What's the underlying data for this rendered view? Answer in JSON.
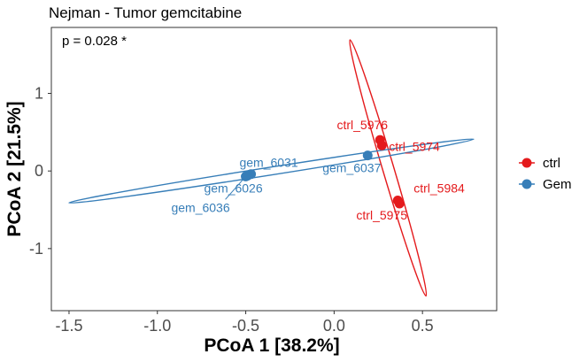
{
  "chart_data": {
    "type": "scatter",
    "title": "Nejman - Tumor gemcitabine",
    "annotation": "p = 0.028 *",
    "xlabel": "PCoA 1 [38.2%]",
    "ylabel": "PCoA 2 [21.5%]",
    "xlim": [
      -1.6,
      0.92
    ],
    "ylim": [
      -1.8,
      1.85
    ],
    "x_ticks": [
      -1.5,
      -1.0,
      -0.5,
      0.0,
      0.5
    ],
    "x_tick_labels": [
      "-1.5",
      "-1.0",
      "-0.5",
      "0.0",
      "0.5"
    ],
    "y_ticks": [
      1,
      0,
      -1
    ],
    "y_tick_labels": [
      "1",
      "0",
      "-1"
    ],
    "grid": false,
    "legend": {
      "placement": "right",
      "entries": [
        {
          "label": "ctrl",
          "color": "#e41a1c"
        },
        {
          "label": "Gem",
          "color": "#377eb8"
        }
      ]
    },
    "series": [
      {
        "name": "ctrl",
        "color": "#e41a1c",
        "points": [
          {
            "label": "ctrl_5976",
            "x": 0.26,
            "y": 0.4
          },
          {
            "label": "ctrl_5974",
            "x": 0.27,
            "y": 0.33
          },
          {
            "label": "ctrl_5984",
            "x": 0.36,
            "y": -0.38
          },
          {
            "label": "ctrl_5975",
            "x": 0.37,
            "y": -0.42
          }
        ],
        "ellipse": {
          "center": [
            0.305,
            0.04
          ],
          "end_a": [
            0.09,
            1.69
          ],
          "end_b": [
            0.52,
            -1.61
          ],
          "minor_half_width": 0.032
        }
      },
      {
        "name": "Gem",
        "color": "#377eb8",
        "points": [
          {
            "label": "gem_6031",
            "x": -0.47,
            "y": -0.04
          },
          {
            "label": "gem_6026",
            "x": -0.49,
            "y": -0.06
          },
          {
            "label": "gem_6036",
            "x": -0.5,
            "y": -0.07
          },
          {
            "label": "gem_6037",
            "x": 0.19,
            "y": 0.2
          }
        ],
        "ellipse": {
          "center": [
            -0.355,
            0.0
          ],
          "end_a": [
            -1.5,
            -0.41
          ],
          "end_b": [
            0.79,
            0.41
          ],
          "minor_half_width": 0.022
        }
      }
    ]
  }
}
